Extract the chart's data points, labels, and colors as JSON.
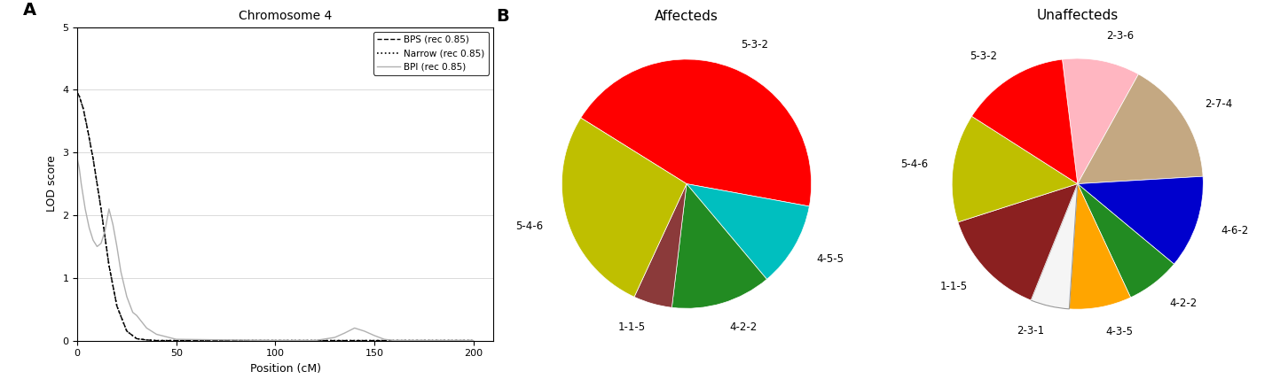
{
  "title_a": "Chromosome 4",
  "xlabel_a": "Position (cM)",
  "ylabel_a": "LOD score",
  "xlim_a": [
    0,
    210
  ],
  "ylim_a": [
    0,
    5
  ],
  "yticks_a": [
    0,
    1,
    2,
    3,
    4,
    5
  ],
  "xticks_a": [
    0,
    50,
    100,
    150,
    200
  ],
  "legend_labels": [
    "BPS (rec 0.85)",
    "Narrow (rec 0.85)",
    "BPI (rec 0.85)"
  ],
  "bps_x": [
    0,
    1,
    3,
    5,
    8,
    12,
    16,
    20,
    25,
    30,
    35,
    40,
    50,
    100,
    200
  ],
  "bps_y": [
    3.95,
    3.9,
    3.7,
    3.4,
    2.9,
    2.1,
    1.2,
    0.55,
    0.15,
    0.03,
    0.01,
    0.0,
    0.0,
    0.0,
    0.0
  ],
  "narrow_x": [
    0,
    1,
    3,
    5,
    8,
    12,
    16,
    20,
    25,
    30,
    35,
    40,
    50,
    100,
    200
  ],
  "narrow_y": [
    3.95,
    3.9,
    3.7,
    3.4,
    2.9,
    2.1,
    1.2,
    0.55,
    0.15,
    0.03,
    0.01,
    0.0,
    0.0,
    0.0,
    0.0
  ],
  "bpi_x": [
    0,
    1,
    2,
    4,
    6,
    8,
    10,
    12,
    14,
    16,
    18,
    20,
    22,
    25,
    28,
    30,
    35,
    40,
    50,
    100,
    120,
    130,
    135,
    140,
    145,
    150,
    155,
    160,
    200
  ],
  "bpi_y": [
    2.9,
    2.75,
    2.5,
    2.1,
    1.8,
    1.6,
    1.5,
    1.55,
    1.75,
    2.1,
    1.85,
    1.5,
    1.1,
    0.7,
    0.45,
    0.4,
    0.2,
    0.1,
    0.02,
    0.0,
    0.0,
    0.05,
    0.12,
    0.2,
    0.15,
    0.08,
    0.02,
    0.0,
    0.0
  ],
  "affected_labels": [
    "5-3-2",
    "4-5-5",
    "4-2-2",
    "1-1-5",
    "5-4-6"
  ],
  "affected_sizes": [
    44,
    11,
    13,
    5,
    27
  ],
  "affected_colors": [
    "#FF0000",
    "#00BFBF",
    "#228B22",
    "#8B3A3A",
    "#BFBF00"
  ],
  "affected_startangle": 148,
  "unaffected_labels": [
    "2-3-6",
    "2-7-4",
    "4-6-2",
    "4-2-2",
    "4-3-5",
    "2-3-1",
    "1-1-5",
    "5-4-6",
    "5-3-2"
  ],
  "unaffected_sizes": [
    10,
    16,
    12,
    7,
    8,
    5,
    14,
    14,
    14
  ],
  "unaffected_colors": [
    "#FFB6C1",
    "#C4A882",
    "#0000CD",
    "#228B22",
    "#FFA500",
    "#F5F5F5",
    "#8B2020",
    "#BFBF00",
    "#FF0000"
  ],
  "unaffected_startangle": 97,
  "label_a": "A",
  "label_b": "B",
  "affected_title": "Affecteds",
  "unaffected_title": "Unaffecteds"
}
